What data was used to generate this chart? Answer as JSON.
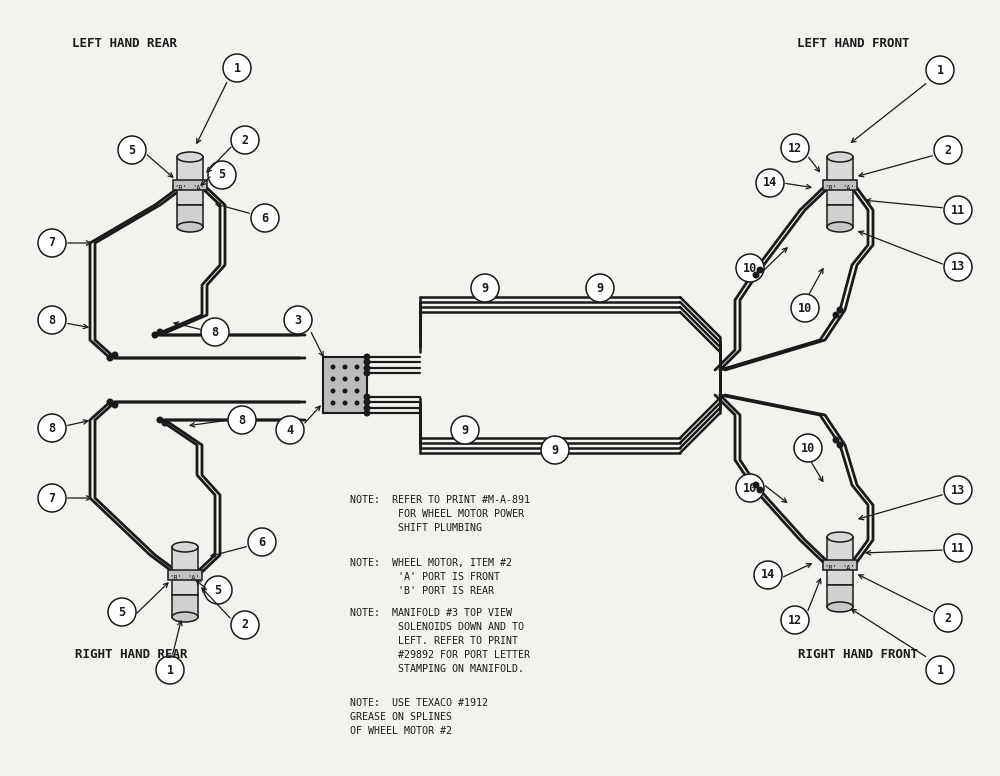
{
  "bg_color": "#f2f2ee",
  "line_color": "#1a1a1a",
  "title_lhr": "LEFT HAND REAR",
  "title_lhf": "LEFT HAND FRONT",
  "title_rhr": "RIGHT HAND REAR",
  "title_rhf": "RIGHT HAND FRONT",
  "note1": "NOTE:  REFER TO PRINT #M-A-891\n        FOR WHEEL MOTOR POWER\n        SHIFT PLUMBING",
  "note2": "NOTE:  WHEEL MOTOR, ITEM #2\n        'A' PORT IS FRONT\n        'B' PORT IS REAR",
  "note3": "NOTE:  MANIFOLD #3 TOP VIEW\n        SOLENOIDS DOWN AND TO\n        LEFT. REFER TO PRINT\n        #29892 FOR PORT LETTER\n        STAMPING ON MANIFOLD.",
  "note4": "NOTE:  USE TEXACO #1912\nGREASE ON SPLINES\nOF WHEEL MOTOR #2"
}
